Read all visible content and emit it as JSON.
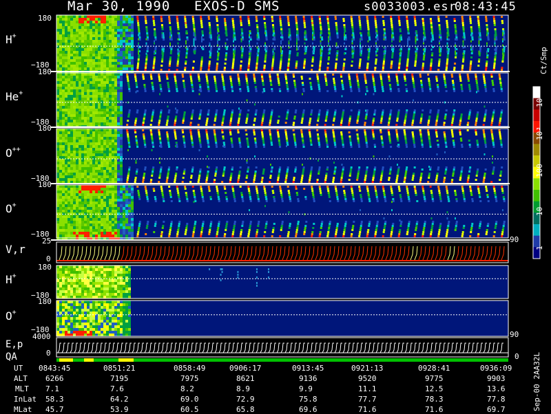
{
  "header": {
    "date": "Mar 30, 1990",
    "instrument": "EXOS-D SMS",
    "file": "s0033003.esr",
    "time": "08:43:45"
  },
  "panels": [
    {
      "id": "h",
      "species": "H",
      "charge": "+",
      "top": "180",
      "bottom": "−180"
    },
    {
      "id": "he",
      "species": "He",
      "charge": "+",
      "top": "180",
      "bottom": "−180"
    },
    {
      "id": "opp",
      "species": "O",
      "charge": "++",
      "top": "180",
      "bottom": "−180"
    },
    {
      "id": "op",
      "species": "O",
      "charge": "+",
      "top": "180",
      "bottom": "−180"
    },
    {
      "id": "vr",
      "species": "V,r",
      "charge": "",
      "top": "25",
      "bottom": "0",
      "right": "90"
    },
    {
      "id": "h2",
      "species": "H",
      "charge": "+",
      "top": "180",
      "bottom": "−180"
    },
    {
      "id": "o2",
      "species": "O",
      "charge": "+",
      "top": "180",
      "bottom": "−180"
    },
    {
      "id": "ep",
      "species": "E,p",
      "charge": "",
      "top": "4000",
      "bottom": "0",
      "right": "90"
    },
    {
      "id": "qa",
      "species": "QA",
      "charge": "",
      "top": "",
      "bottom": "",
      "right": "0"
    }
  ],
  "colorbar": {
    "unit": "Ct/Smp",
    "labels": [
      "10⁴",
      "10³",
      "100",
      "10",
      "1"
    ],
    "colors": [
      "#ffffff",
      "#7a0000",
      "#c80000",
      "#ff1400",
      "#8a4a00",
      "#a08a00",
      "#c8c800",
      "#ffff00",
      "#8ae000",
      "#40c000",
      "#009c30",
      "#007060",
      "#00b0c0",
      "#203ca8",
      "#000080"
    ]
  },
  "footer": {
    "rows": [
      {
        "label": "UT",
        "values": [
          "0843:45",
          "0851:21",
          "0858:49",
          "0906:17",
          "0913:45",
          "0921:13",
          "0928:41",
          "0936:09"
        ]
      },
      {
        "label": "ALT",
        "values": [
          "6266",
          "7195",
          "7975",
          "8621",
          "9136",
          "9520",
          "9775",
          "9903"
        ]
      },
      {
        "label": "MLT",
        "values": [
          "7.1",
          "7.6",
          "8.2",
          "8.9",
          "9.9",
          "11.1",
          "12.5",
          "13.6"
        ]
      },
      {
        "label": "InLat",
        "values": [
          "58.3",
          "64.2",
          "69.0",
          "72.9",
          "75.8",
          "77.7",
          "78.3",
          "77.8"
        ]
      },
      {
        "label": "MLat",
        "values": [
          "45.7",
          "53.9",
          "60.5",
          "65.8",
          "69.6",
          "71.6",
          "71.6",
          "69.7"
        ]
      }
    ],
    "stamp": "Sep-00 2AA32L"
  },
  "chart_data": {
    "type": "heatmap",
    "title": "Mar 30, 1990   EXOS-D SMS   s0033003.esr   08:43:45",
    "x": [
      "0843:45",
      "0851:21",
      "0858:49",
      "0906:17",
      "0913:45",
      "0921:13",
      "0928:41",
      "0936:09"
    ],
    "series": [
      {
        "name": "H+",
        "ylim": [
          -180,
          180
        ]
      },
      {
        "name": "He+",
        "ylim": [
          -180,
          180
        ]
      },
      {
        "name": "O++",
        "ylim": [
          -180,
          180
        ]
      },
      {
        "name": "O+",
        "ylim": [
          -180,
          180
        ]
      },
      {
        "name": "V,r",
        "ylim": [
          0,
          25
        ]
      },
      {
        "name": "H+",
        "ylim": [
          -180,
          180
        ]
      },
      {
        "name": "O+",
        "ylim": [
          -180,
          180
        ]
      },
      {
        "name": "E,p",
        "ylim": [
          0,
          4000
        ]
      },
      {
        "name": "QA"
      }
    ],
    "colorscale": {
      "label": "Ct/Smp",
      "ticks": [
        "1",
        "10",
        "100",
        "10³",
        "10⁴"
      ]
    }
  }
}
